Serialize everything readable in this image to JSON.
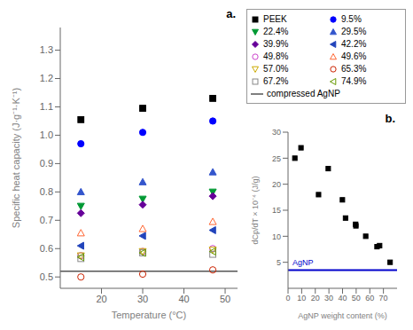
{
  "chart_data": [
    {
      "type": "scatter",
      "title": "a.",
      "xlabel": "Temperature (°C)",
      "ylabel": "Specific heat capacity (J·g⁻¹·K⁻¹)",
      "xlim": [
        10,
        53
      ],
      "ylim": [
        0.46,
        1.38
      ],
      "xticks": [
        20,
        30,
        40,
        50
      ],
      "yticks": [
        0.5,
        0.6,
        0.7,
        0.8,
        0.9,
        {
          "value": 1,
          "label": "1.0"
        },
        1.1,
        1.2,
        1.3
      ],
      "grid": false,
      "legend": "upper right",
      "series": [
        {
          "name": "PEEK",
          "color": "#000000",
          "marker": "square",
          "x": [
            15,
            30,
            47
          ],
          "values": [
            1.055,
            1.095,
            1.13
          ]
        },
        {
          "name": "9.5%",
          "color": "#0000ff",
          "marker": "circle",
          "x": [
            15,
            30,
            47
          ],
          "values": [
            0.97,
            1.01,
            1.05
          ]
        },
        {
          "name": "22.4%",
          "color": "#009933",
          "marker": "triangle-down",
          "x": [
            15,
            30,
            47
          ],
          "values": [
            0.75,
            0.775,
            0.8
          ]
        },
        {
          "name": "29.5%",
          "color": "#3355cc",
          "marker": "triangle-up",
          "x": [
            15,
            30,
            47
          ],
          "values": [
            0.8,
            0.835,
            0.87
          ]
        },
        {
          "name": "39.9%",
          "color": "#660099",
          "marker": "diamond",
          "x": [
            15,
            30,
            47
          ],
          "values": [
            0.725,
            0.755,
            0.785
          ]
        },
        {
          "name": "42.2%",
          "color": "#2244bb",
          "marker": "triangle-left",
          "x": [
            15,
            30,
            47
          ],
          "values": [
            0.61,
            0.645,
            0.665
          ]
        },
        {
          "name": "49.8%",
          "color": "#cc44cc",
          "marker": "circle-open",
          "x": [
            15,
            30,
            47
          ],
          "values": [
            0.575,
            0.59,
            0.6
          ]
        },
        {
          "name": "49.6%",
          "color": "#ff6633",
          "marker": "triangle-up-open",
          "x": [
            15,
            30,
            47
          ],
          "values": [
            0.655,
            0.67,
            0.695
          ]
        },
        {
          "name": "57.0%",
          "color": "#ccaa00",
          "marker": "triangle-down-open",
          "x": [
            15,
            30,
            47
          ],
          "values": [
            0.575,
            0.59,
            0.595
          ]
        },
        {
          "name": "65.3%",
          "color": "#cc2200",
          "marker": "circle-open",
          "x": [
            15,
            30,
            47
          ],
          "values": [
            0.5,
            0.51,
            0.525
          ]
        },
        {
          "name": "67.2%",
          "color": "#888888",
          "marker": "square-open",
          "x": [
            15,
            30,
            47
          ],
          "values": [
            0.565,
            0.585,
            0.58
          ]
        },
        {
          "name": "74.9%",
          "color": "#669900",
          "marker": "triangle-left-open",
          "x": [
            15,
            30,
            47
          ],
          "values": [
            0.57,
            0.585,
            0.59
          ]
        }
      ],
      "reference_lines": [
        {
          "y": 0.52,
          "label": "compressed AgNP",
          "color": "#555555"
        }
      ]
    },
    {
      "type": "scatter",
      "title": "b.",
      "xlabel": "AgNP weight content (%)",
      "ylabel": "dCp/dT × 10⁻⁴ (J/g)",
      "xlim": [
        0,
        80
      ],
      "ylim": [
        0,
        30
      ],
      "xticks": [
        0,
        10,
        20,
        30,
        40,
        50,
        60,
        70
      ],
      "yticks": [
        5,
        10,
        15,
        20,
        25,
        30
      ],
      "grid": false,
      "color": "black",
      "marker": "square",
      "x": [
        5,
        9.5,
        22.4,
        29.5,
        39.9,
        42.2,
        49.8,
        49.6,
        57.0,
        65.3,
        67.2,
        74.9
      ],
      "values": [
        25.0,
        27.0,
        18.0,
        23.0,
        17.0,
        13.5,
        12.0,
        12.3,
        10.0,
        8.0,
        8.2,
        5.0
      ],
      "reference_lines": [
        {
          "y": 3.5,
          "label": "AgNP",
          "color": "#0000cc"
        }
      ]
    }
  ]
}
